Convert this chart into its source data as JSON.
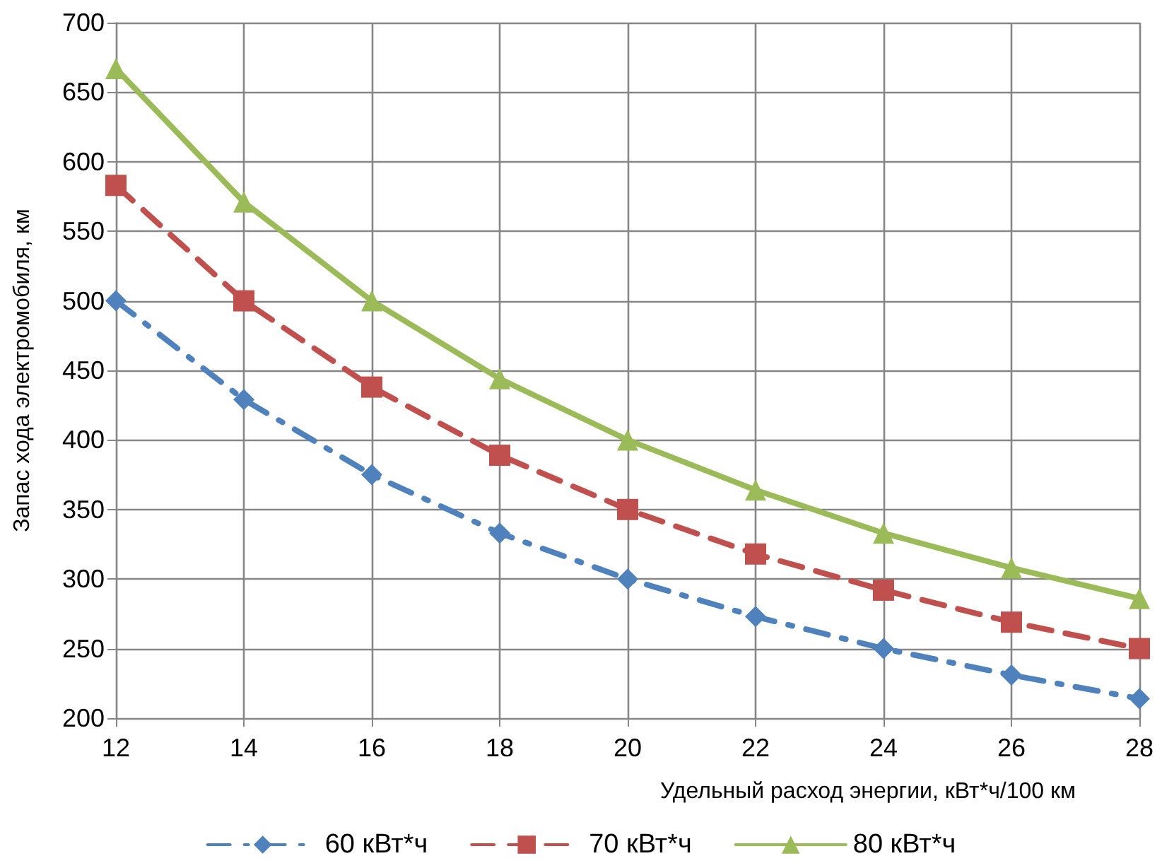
{
  "chart_data": {
    "type": "line",
    "xlabel": "Удельный расход энергии, кВт*ч/100 км",
    "ylabel": "Запас хода электромобиля, км",
    "x": [
      12,
      14,
      16,
      18,
      20,
      22,
      24,
      26,
      28
    ],
    "series": [
      {
        "name": "60 кВт*ч",
        "color": "#4f81bd",
        "marker": "diamond",
        "line_style": "dashdot",
        "values": [
          500,
          429,
          375,
          333,
          300,
          273,
          250,
          231,
          214
        ]
      },
      {
        "name": "70 кВт*ч",
        "color": "#c0504d",
        "marker": "square",
        "line_style": "dashed",
        "values": [
          583,
          500,
          438,
          389,
          350,
          318,
          292,
          269,
          250
        ]
      },
      {
        "name": "80 кВт*ч",
        "color": "#9bbb59",
        "marker": "triangle",
        "line_style": "solid",
        "values": [
          667,
          571,
          500,
          444,
          400,
          364,
          333,
          308,
          286
        ]
      }
    ],
    "xlim": [
      12,
      28
    ],
    "xticks": [
      12,
      14,
      16,
      18,
      20,
      22,
      24,
      26,
      28
    ],
    "ylim": [
      200,
      700
    ],
    "yticks": [
      200,
      250,
      300,
      350,
      400,
      450,
      500,
      550,
      600,
      650,
      700
    ],
    "grid": true,
    "legend": "bottom"
  }
}
